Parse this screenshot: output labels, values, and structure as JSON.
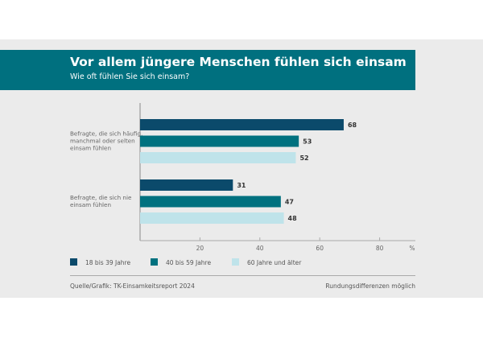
{
  "header": {
    "title": "Vor allem jüngere Menschen fühlen sich einsam",
    "subtitle": "Wie oft fühlen Sie sich einsam?"
  },
  "chart_data": {
    "type": "bar",
    "orientation": "horizontal",
    "title": "Vor allem jüngere Menschen fühlen sich einsam",
    "subtitle": "Wie oft fühlen Sie sich einsam?",
    "categories": [
      [
        "Befragte, die sich häufig,",
        "manchmal oder selten",
        "einsam fühlen"
      ],
      [
        "Befragte, die sich nie",
        "einsam fühlen"
      ]
    ],
    "series": [
      {
        "name": "18 bis 39 Jahre",
        "color": "#0b4a6b",
        "values": [
          68,
          31
        ]
      },
      {
        "name": "40 bis 59 Jahre",
        "color": "#00717f",
        "values": [
          53,
          47
        ]
      },
      {
        "name": "60 Jahre und älter",
        "color": "#bfe3ea",
        "values": [
          52,
          48
        ]
      }
    ],
    "xticks": [
      "20",
      "40",
      "60",
      "80"
    ],
    "xunit": "%",
    "xlim": [
      0,
      92
    ],
    "grid": false,
    "legend": "bottom"
  },
  "footer": {
    "source": "Quelle/Grafik: TK-Einsamkeitsreport 2024",
    "note": "Rundungsdifferenzen möglich"
  }
}
